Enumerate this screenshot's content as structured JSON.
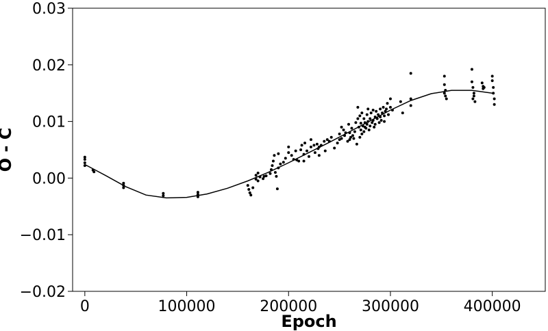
{
  "chart_data": {
    "type": "scatter",
    "title": "",
    "xlabel": "Epoch",
    "ylabel": "O - C",
    "xlim": [
      -12000,
      452000
    ],
    "ylim": [
      -0.02,
      0.03
    ],
    "x_ticks": [
      0,
      100000,
      200000,
      300000,
      400000
    ],
    "x_tick_labels": [
      "0",
      "100000",
      "200000",
      "300000",
      "400000"
    ],
    "y_ticks": [
      -0.02,
      -0.01,
      0.0,
      0.01,
      0.02,
      0.03
    ],
    "y_tick_labels": [
      "−0.02",
      "−0.01",
      "0.00",
      "0.01",
      "0.02",
      "0.03"
    ],
    "grid": false,
    "legend": "none",
    "colors": {
      "points": "#000000",
      "fit_line": "#000000",
      "axes": "#000000"
    },
    "series": [
      {
        "kind": "points",
        "x": [
          0,
          0,
          0,
          0,
          8000,
          9000,
          38000,
          38000,
          38000,
          77000,
          77000,
          111000,
          111000,
          111000,
          160000,
          161000,
          162000,
          163000,
          165000,
          168000,
          168000,
          170000,
          170000,
          172000,
          175000,
          176000,
          178000,
          182000,
          183000,
          184000,
          185000,
          186000,
          187000,
          188000,
          189000,
          190000,
          190000,
          192000,
          195000,
          197000,
          200000,
          200000,
          203000,
          205000,
          207000,
          208000,
          210000,
          212000,
          213000,
          215000,
          215000,
          216000,
          218000,
          220000,
          222000,
          222000,
          225000,
          226000,
          228000,
          229000,
          230000,
          230000,
          232000,
          235000,
          236000,
          238000,
          240000,
          242000,
          245000,
          248000,
          250000,
          250000,
          252000,
          252000,
          254000,
          255000,
          256000,
          258000,
          259000,
          260000,
          260000,
          261000,
          262000,
          263000,
          264000,
          265000,
          266000,
          267000,
          268000,
          268000,
          269000,
          270000,
          270000,
          271000,
          271000,
          272000,
          272000,
          273000,
          274000,
          274000,
          275000,
          275000,
          276000,
          277000,
          277000,
          278000,
          278000,
          279000,
          280000,
          280000,
          281000,
          282000,
          283000,
          283000,
          284000,
          285000,
          285000,
          286000,
          287000,
          288000,
          289000,
          290000,
          290000,
          291000,
          292000,
          293000,
          294000,
          294000,
          295000,
          296000,
          297000,
          298000,
          300000,
          300000,
          302000,
          310000,
          312000,
          320000,
          320000,
          320000,
          353000,
          353000,
          353000,
          354000,
          354000,
          355000,
          380000,
          380000,
          381000,
          381000,
          382000,
          382000,
          383000,
          390000,
          391000,
          391000,
          392000,
          400000,
          400000,
          401000,
          401000,
          402000,
          402000
        ],
        "y": [
          0.0037,
          0.0033,
          0.0027,
          0.0022,
          0.0014,
          0.0011,
          -0.0009,
          -0.0013,
          -0.0017,
          -0.0027,
          -0.0031,
          -0.0025,
          -0.0029,
          -0.0033,
          -0.0013,
          -0.002,
          -0.0026,
          -0.003,
          -0.0017,
          -0.0002,
          0.0005,
          -0.0005,
          0.0009,
          0.0002,
          -0.0001,
          0.0003,
          0.0004,
          0.0008,
          0.0015,
          0.0022,
          0.003,
          0.004,
          0.001,
          0.0003,
          -0.0019,
          0.0043,
          0.0018,
          0.0025,
          0.0028,
          0.0035,
          0.0055,
          0.0045,
          0.004,
          0.0033,
          0.0048,
          0.0032,
          0.003,
          0.005,
          0.0058,
          0.0042,
          0.003,
          0.0062,
          0.0048,
          0.0038,
          0.0055,
          0.0068,
          0.0058,
          0.0045,
          0.006,
          0.0052,
          0.004,
          0.0055,
          0.0058,
          0.0065,
          0.0048,
          0.0068,
          0.0065,
          0.0072,
          0.0053,
          0.0062,
          0.0068,
          0.0078,
          0.009,
          0.007,
          0.0085,
          0.0075,
          0.008,
          0.0065,
          0.0095,
          0.008,
          0.0068,
          0.0072,
          0.0088,
          0.0075,
          0.007,
          0.0082,
          0.0098,
          0.006,
          0.0105,
          0.0125,
          0.009,
          0.0072,
          0.011,
          0.0085,
          0.0097,
          0.0078,
          0.0115,
          0.0092,
          0.0082,
          0.0105,
          0.009,
          0.0098,
          0.0088,
          0.0112,
          0.0095,
          0.01,
          0.0122,
          0.0085,
          0.0105,
          0.0092,
          0.0115,
          0.0098,
          0.0102,
          0.012,
          0.009,
          0.0108,
          0.0095,
          0.0118,
          0.0105,
          0.0112,
          0.0098,
          0.0122,
          0.0108,
          0.0102,
          0.0115,
          0.0125,
          0.011,
          0.01,
          0.0118,
          0.0122,
          0.0132,
          0.0112,
          0.0125,
          0.014,
          0.012,
          0.0135,
          0.0115,
          0.0128,
          0.014,
          0.0185,
          0.018,
          0.0165,
          0.015,
          0.0145,
          0.0155,
          0.014,
          0.0192,
          0.017,
          0.016,
          0.014,
          0.015,
          0.0145,
          0.0135,
          0.0168,
          0.0158,
          0.0162,
          0.016,
          0.018,
          0.0172,
          0.016,
          0.015,
          0.014,
          0.013
        ]
      },
      {
        "kind": "fit_line",
        "x": [
          0,
          20000,
          40000,
          60000,
          80000,
          100000,
          120000,
          140000,
          160000,
          180000,
          200000,
          220000,
          240000,
          260000,
          280000,
          300000,
          320000,
          340000,
          360000,
          380000,
          400000
        ],
        "y": [
          0.0024,
          0.0005,
          -0.0015,
          -0.003,
          -0.0035,
          -0.0034,
          -0.0028,
          -0.0018,
          -0.0005,
          0.001,
          0.0027,
          0.0045,
          0.0063,
          0.0082,
          0.0101,
          0.012,
          0.0137,
          0.0149,
          0.0155,
          0.0155,
          0.015
        ]
      }
    ]
  }
}
